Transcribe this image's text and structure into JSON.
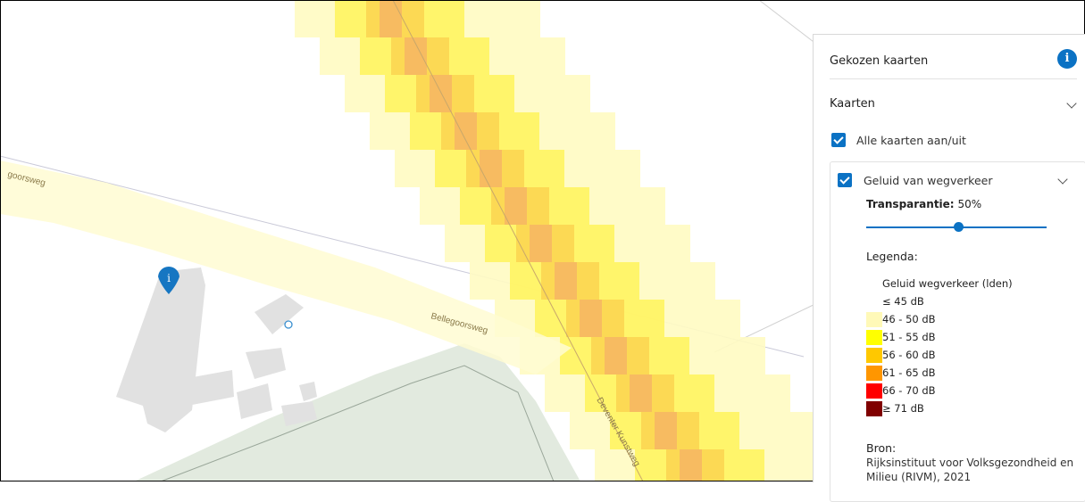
{
  "map": {
    "street_labels": [
      "goorsweg",
      "Bellegoorsweg",
      "Deventer Kunstweg"
    ],
    "info_marker_glyph": "i",
    "marker_icon": "map-pin-info-icon",
    "noise_colors": {
      "c46_50": "#fffbc2",
      "c51_55": "#fff35a",
      "c56_60": "#fbd24f",
      "c61_65": "#f6b066"
    }
  },
  "panel": {
    "header": "Gekozen kaarten",
    "info_icon_glyph": "i",
    "section_title": "Kaarten",
    "toggle_all_label": "Alle kaarten aan/uit",
    "toggle_all_checked": true,
    "layer": {
      "name": "Geluid van wegverkeer",
      "checked": true,
      "transparency_label": "Transparantie:",
      "transparency_value": "50%",
      "transparency_fraction": 0.5,
      "legend_title": "Legenda:",
      "legend_subtitle": "Geluid wegverkeer (lden)",
      "legend": [
        {
          "label": "≤ 45 dB",
          "color": "#ffffff"
        },
        {
          "label": "46 - 50 dB",
          "color": "#fff9b8"
        },
        {
          "label": "51 - 55 dB",
          "color": "#ffff00"
        },
        {
          "label": "56 - 60 dB",
          "color": "#ffc800"
        },
        {
          "label": "61 - 65 dB",
          "color": "#ff9600"
        },
        {
          "label": "66 - 70 dB",
          "color": "#ff0000"
        },
        {
          "label": "≥ 71 dB",
          "color": "#800000"
        }
      ],
      "source_title": "Bron:",
      "source_text": "Rijksinstituut voor Volksgezondheid en Milieu (RIVM), 2021"
    }
  }
}
